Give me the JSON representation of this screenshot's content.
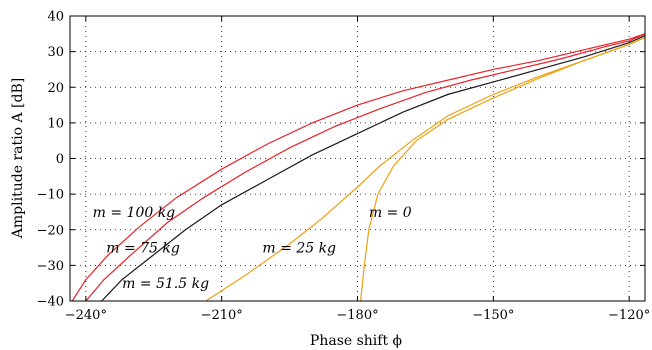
{
  "chart_data": {
    "type": "line",
    "xlabel": "Phase shift ϕ",
    "ylabel": "Amplitude ratio A [dB]",
    "xlim": [
      -243.5,
      -116.5
    ],
    "ylim": [
      -40,
      40
    ],
    "x_ticks": [
      -240,
      -210,
      -180,
      -150,
      -120
    ],
    "x_tick_labels": [
      "−240°",
      "−210°",
      "−180°",
      "−150°",
      "−120°"
    ],
    "y_ticks": [
      -40,
      -30,
      -20,
      -10,
      0,
      10,
      20,
      30,
      40
    ],
    "y_tick_labels": [
      "−40",
      "−30",
      "−20",
      "−10",
      "0",
      "10",
      "20",
      "30",
      "40"
    ],
    "grid": true,
    "series": [
      {
        "name": "m = 100 kg",
        "color": "#e8222a",
        "points": [
          [
            -243.0,
            -40
          ],
          [
            -240.0,
            -34
          ],
          [
            -235.0,
            -27
          ],
          [
            -228.0,
            -19
          ],
          [
            -220.0,
            -11
          ],
          [
            -210.0,
            -3
          ],
          [
            -200.0,
            4
          ],
          [
            -190.0,
            10
          ],
          [
            -180.0,
            15
          ],
          [
            -170.0,
            19
          ],
          [
            -160.0,
            22
          ],
          [
            -150.0,
            25
          ],
          [
            -140.0,
            27.5
          ],
          [
            -130.0,
            30.5
          ],
          [
            -120.0,
            33.5
          ],
          [
            -116.5,
            35
          ]
        ]
      },
      {
        "name": "m = 75 kg",
        "color": "#e8222a",
        "points": [
          [
            -240.0,
            -40
          ],
          [
            -236.0,
            -34
          ],
          [
            -230.0,
            -27
          ],
          [
            -222.0,
            -18
          ],
          [
            -214.0,
            -11
          ],
          [
            -205.0,
            -4
          ],
          [
            -195.0,
            3
          ],
          [
            -185.0,
            9
          ],
          [
            -175.0,
            14
          ],
          [
            -165.0,
            18.5
          ],
          [
            -155.0,
            22
          ],
          [
            -145.0,
            25
          ],
          [
            -135.0,
            28
          ],
          [
            -125.0,
            31.5
          ],
          [
            -120.0,
            33
          ],
          [
            -116.5,
            35
          ]
        ]
      },
      {
        "name": "m = 51.5 kg",
        "color": "#1a1a1a",
        "points": [
          [
            -236.5,
            -40
          ],
          [
            -232.0,
            -34
          ],
          [
            -226.0,
            -28
          ],
          [
            -218.0,
            -20
          ],
          [
            -210.0,
            -13
          ],
          [
            -200.0,
            -6
          ],
          [
            -190.0,
            1
          ],
          [
            -180.0,
            7
          ],
          [
            -170.0,
            13
          ],
          [
            -160.0,
            18
          ],
          [
            -150.0,
            21.5
          ],
          [
            -140.0,
            25
          ],
          [
            -130.0,
            28.5
          ],
          [
            -120.0,
            32.5
          ],
          [
            -116.5,
            34.5
          ]
        ]
      },
      {
        "name": "m = 25 kg",
        "color": "#f0a010",
        "points": [
          [
            -213.5,
            -40
          ],
          [
            -205.0,
            -33
          ],
          [
            -195.0,
            -24
          ],
          [
            -188.0,
            -17
          ],
          [
            -180.0,
            -8
          ],
          [
            -175.0,
            -2
          ],
          [
            -168.0,
            5
          ],
          [
            -160.0,
            12
          ],
          [
            -150.0,
            18
          ],
          [
            -140.0,
            23
          ],
          [
            -130.0,
            27.5
          ],
          [
            -120.0,
            32
          ],
          [
            -116.5,
            34
          ]
        ]
      },
      {
        "name": "m = 0",
        "color": "#f0a010",
        "points": [
          [
            -179.3,
            -40
          ],
          [
            -178.5,
            -30
          ],
          [
            -177.5,
            -20
          ],
          [
            -175.5,
            -10
          ],
          [
            -172.0,
            -2
          ],
          [
            -167.0,
            5
          ],
          [
            -160.0,
            11
          ],
          [
            -150.0,
            17
          ],
          [
            -140.0,
            22.5
          ],
          [
            -130.0,
            27.5
          ],
          [
            -120.0,
            32
          ],
          [
            -116.5,
            34
          ]
        ]
      }
    ],
    "annotations": [
      {
        "text": "m = 100 kg",
        "x": -238.5,
        "y": -15
      },
      {
        "text": "m = 75 kg",
        "x": -235.5,
        "y": -25
      },
      {
        "text": "m = 51.5 kg",
        "x": -232.0,
        "y": -35
      },
      {
        "text": "m = 25 kg",
        "x": -201.0,
        "y": -25
      },
      {
        "text": "m = 0",
        "x": -177.5,
        "y": -15
      }
    ]
  }
}
